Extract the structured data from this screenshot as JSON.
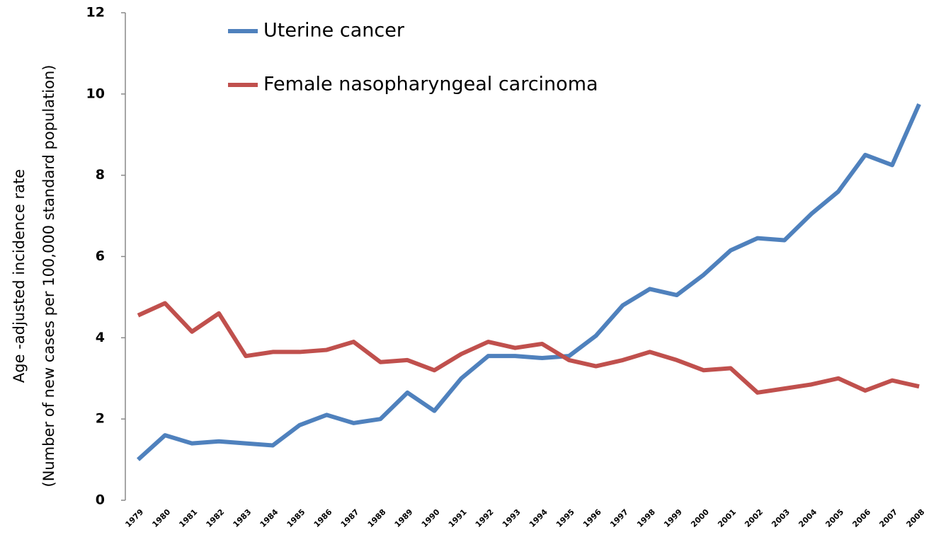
{
  "chart_data": {
    "type": "line",
    "ylabel": [
      "Age -adjusted  incidence  rate",
      "(Number of new cases per 100,000 standard population)"
    ],
    "categories": [
      "1979",
      "1980",
      "1981",
      "1982",
      "1983",
      "1984",
      "1985",
      "1986",
      "1987",
      "1988",
      "1989",
      "1990",
      "1991",
      "1992",
      "1993",
      "1994",
      "1995",
      "1996",
      "1997",
      "1998",
      "1999",
      "2000",
      "2001",
      "2002",
      "2003",
      "2004",
      "2005",
      "2006",
      "2007",
      "2008"
    ],
    "series": [
      {
        "name": "Uterine cancer",
        "color": "#4f81bd",
        "values": [
          1.0,
          1.6,
          1.4,
          1.45,
          1.4,
          1.35,
          1.85,
          2.1,
          1.9,
          2.0,
          2.65,
          2.2,
          3.0,
          3.55,
          3.55,
          3.5,
          3.55,
          4.05,
          4.8,
          5.2,
          5.05,
          5.55,
          6.15,
          6.45,
          6.4,
          7.05,
          7.6,
          8.5,
          8.25,
          9.75
        ]
      },
      {
        "name": "Female nasopharyngeal carcinoma",
        "color": "#c0504d",
        "values": [
          4.55,
          4.85,
          4.15,
          4.6,
          3.55,
          3.65,
          3.65,
          3.7,
          3.9,
          3.4,
          3.45,
          3.2,
          3.6,
          3.9,
          3.75,
          3.85,
          3.45,
          3.3,
          3.45,
          3.65,
          3.45,
          3.2,
          3.25,
          2.65,
          2.75,
          2.85,
          3.0,
          2.7,
          2.95,
          2.8
        ]
      }
    ],
    "ylim": [
      0,
      12
    ],
    "yticks": [
      0,
      2,
      4,
      6,
      8,
      10,
      12
    ],
    "grid": false,
    "legend": "upper left"
  }
}
